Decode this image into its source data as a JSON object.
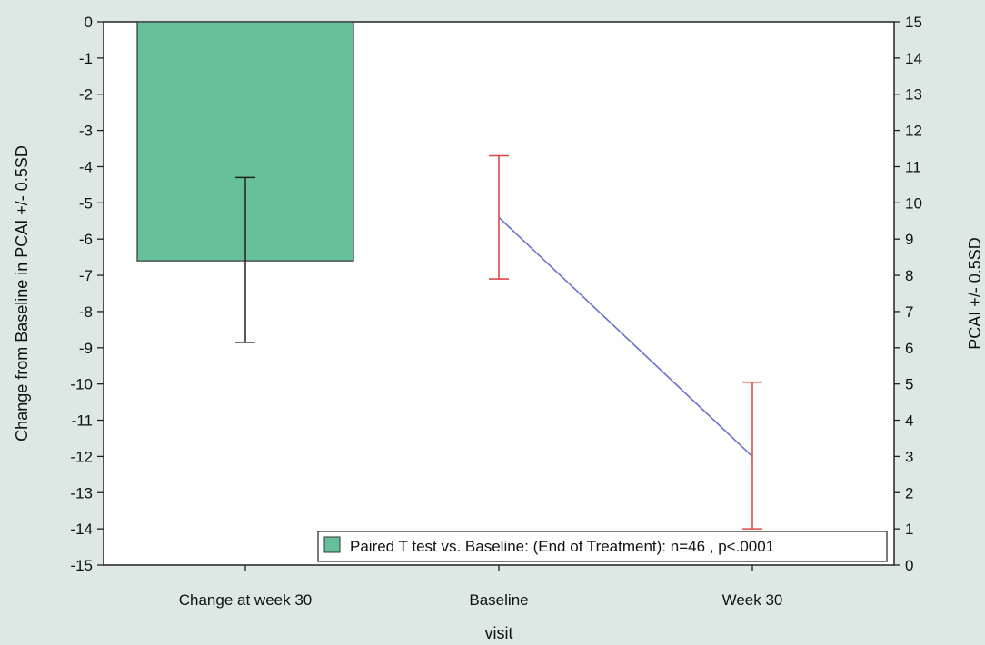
{
  "chart_data": {
    "type": "bar",
    "xlabel": "visit",
    "ylabel_left": "Change from Baseline in PCAI +/- 0.5SD",
    "ylabel_right": "PCAI +/- 0.5SD",
    "categories": [
      "Change at week 30",
      "Baseline",
      "Week 30"
    ],
    "ylim_left": [
      -15,
      0
    ],
    "ylim_right": [
      0,
      15
    ],
    "yticks_left": [
      "0",
      "-1",
      "-2",
      "-3",
      "-4",
      "-5",
      "-6",
      "-7",
      "-8",
      "-9",
      "-10",
      "-11",
      "-12",
      "-13",
      "-14",
      "-15"
    ],
    "yticks_right": [
      "15",
      "14",
      "13",
      "12",
      "11",
      "10",
      "9",
      "8",
      "7",
      "6",
      "5",
      "4",
      "3",
      "2",
      "1",
      "0"
    ],
    "bar_series": {
      "name": "Paired T test vs. Baseline: (End of Treatment): n=46 , p<.0001",
      "category": "Change at week 30",
      "value": -6.6,
      "error_low": -8.85,
      "error_high": -4.3,
      "color": "#66c19a"
    },
    "line_series": {
      "axis": "right",
      "x": [
        "Baseline",
        "Week 30"
      ],
      "values": [
        9.6,
        3.0
      ],
      "error_low": [
        7.9,
        1.0
      ],
      "error_high": [
        11.3,
        5.05
      ],
      "line_color": "#6a6fd0",
      "error_color": "#d94a4a"
    },
    "legend": {
      "placement": "bottom-right",
      "label": "Paired T test vs. Baseline: (End of Treatment): n=46 , p<.0001"
    },
    "grid": false
  }
}
